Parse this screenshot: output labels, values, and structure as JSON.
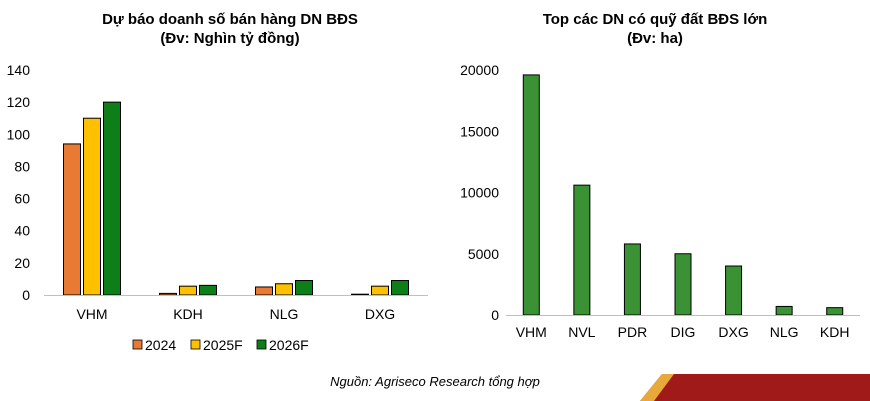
{
  "chart_data": [
    {
      "type": "bar",
      "title": "Dự báo doanh số bán hàng DN BĐS",
      "subtitle": "(Đv: Nghìn tỷ đồng)",
      "categories": [
        "VHM",
        "KDH",
        "NLG",
        "DXG"
      ],
      "series": [
        {
          "name": "2024",
          "color": "#E87A34",
          "values": [
            94,
            1,
            5,
            0.5
          ]
        },
        {
          "name": "2025F",
          "color": "#FFC000",
          "values": [
            110,
            5.5,
            7,
            5.5
          ]
        },
        {
          "name": "2026F",
          "color": "#0E7F18",
          "values": [
            120,
            6,
            9,
            9
          ]
        }
      ],
      "ylim": [
        0,
        140
      ],
      "yticks": [
        0,
        20,
        40,
        60,
        80,
        100,
        120,
        140
      ],
      "grid": false,
      "legend": "bottom"
    },
    {
      "type": "bar",
      "title": "Top các DN có quỹ đất BĐS lớn",
      "subtitle": "(Đv: ha)",
      "categories": [
        "VHM",
        "NVL",
        "PDR",
        "DIG",
        "DXG",
        "NLG",
        "KDH"
      ],
      "series": [
        {
          "color": "#3A9234",
          "values": [
            19600,
            10600,
            5800,
            5000,
            4000,
            700,
            600
          ]
        }
      ],
      "ylim": [
        0,
        20000
      ],
      "yticks": [
        0,
        5000,
        10000,
        15000,
        20000
      ],
      "grid": false,
      "legend": "none"
    }
  ],
  "source": "Nguồn: Agriseco Research tổng hợp"
}
